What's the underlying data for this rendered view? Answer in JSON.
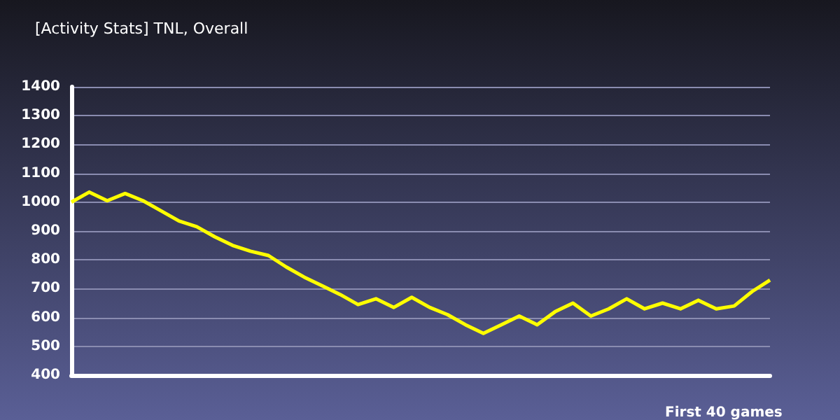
{
  "chart_data": {
    "type": "line",
    "subtitle": "[Activity Stats] TNL, Overall",
    "xlabel": "First 40 games",
    "categories": [
      null,
      null,
      null,
      null,
      null,
      null,
      null,
      null,
      null,
      null,
      null,
      null,
      null,
      null,
      null,
      null,
      null,
      null,
      null,
      null,
      null,
      null,
      null,
      null,
      null,
      null,
      null,
      null,
      null,
      null,
      null,
      null,
      null,
      null,
      null,
      null,
      null,
      null,
      null,
      null
    ],
    "series": [
      {
        "color": "#ffff00",
        "values": [
          1000,
          1035,
          1005,
          1030,
          1005,
          970,
          935,
          915,
          880,
          850,
          830,
          815,
          775,
          740,
          710,
          680,
          645,
          665,
          635,
          670,
          635,
          610,
          575,
          545,
          575,
          605,
          575,
          620,
          650,
          605,
          630,
          665,
          630,
          650,
          630,
          660,
          630,
          640,
          690,
          730
        ]
      }
    ],
    "ylim": [
      400,
      1400
    ],
    "yticks": [
      400,
      500,
      600,
      700,
      800,
      900,
      1000,
      1100,
      1200,
      1300,
      1400
    ],
    "grid": "y",
    "marker": "none",
    "line_style": "solid"
  }
}
